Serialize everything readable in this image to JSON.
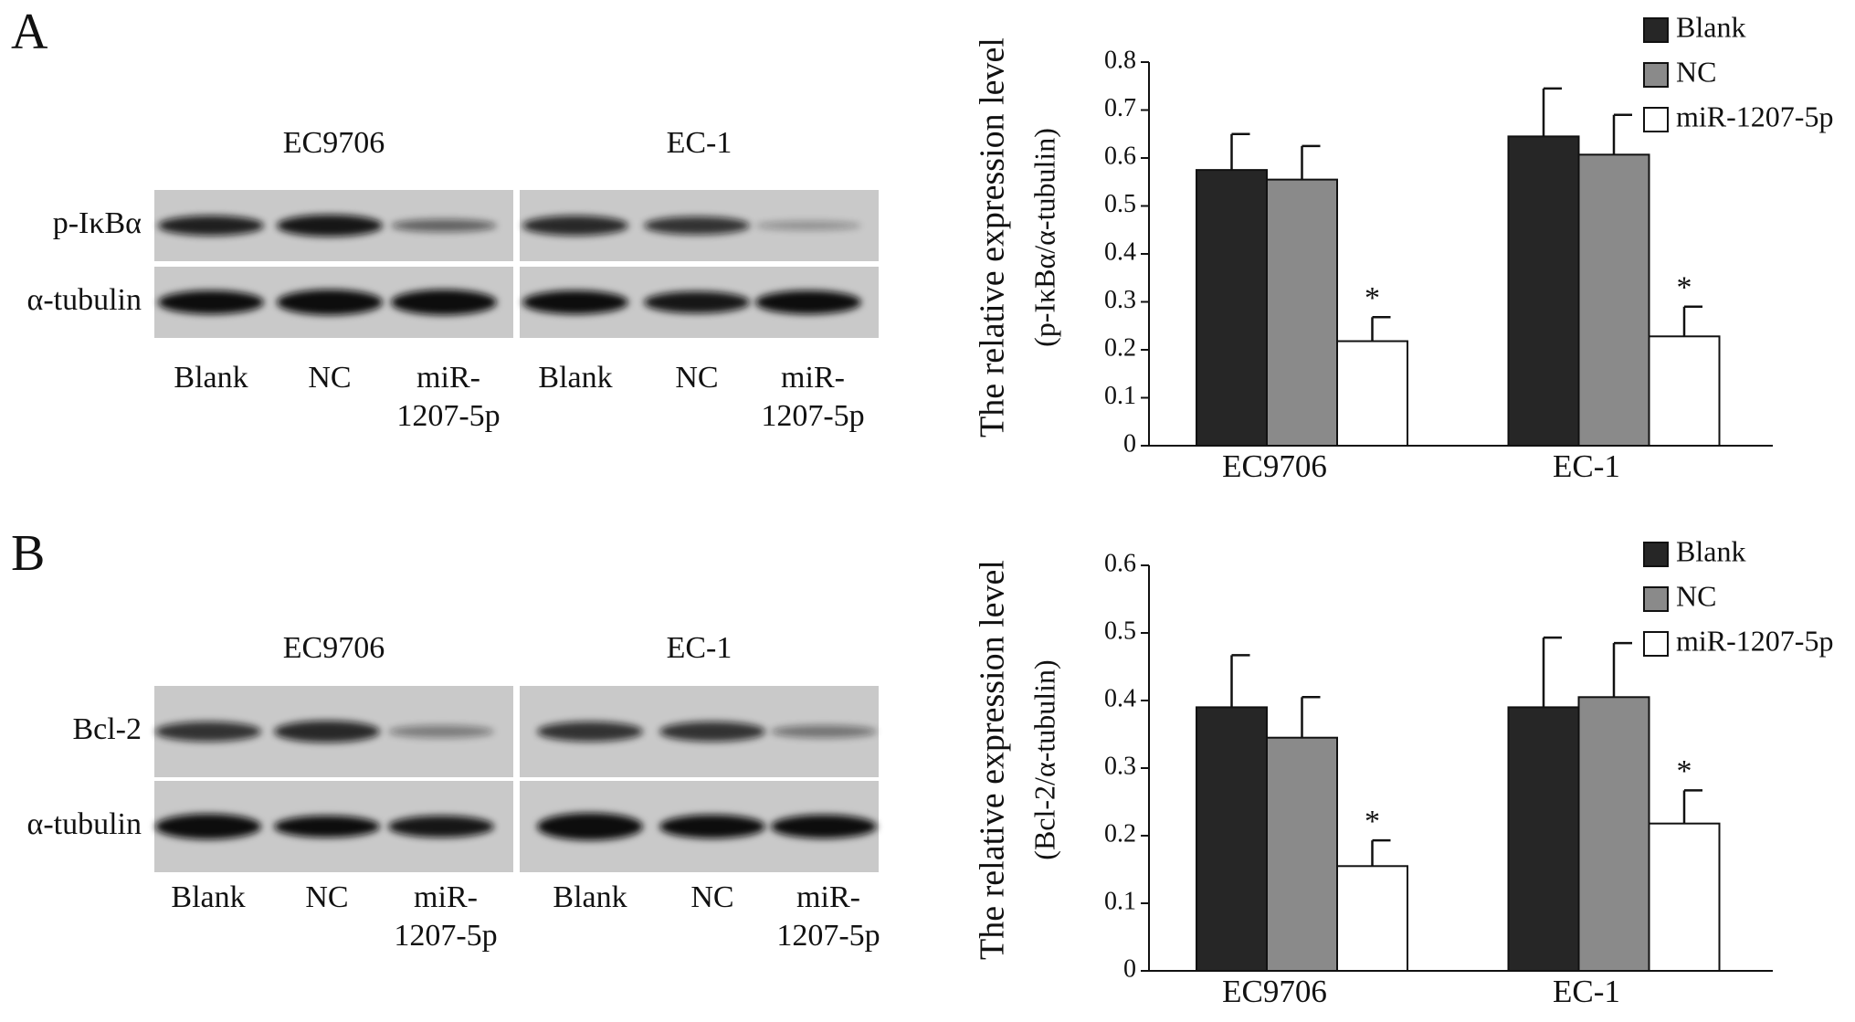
{
  "panel_labels": [
    "A",
    "B"
  ],
  "blots": [
    {
      "cell_lines": [
        "EC9706",
        "EC-1"
      ],
      "rows": [
        "p-IκBα",
        "α-tubulin"
      ],
      "lanes": [
        [
          "Blank"
        ],
        [
          "NC"
        ],
        [
          "miR-",
          "1207-5p"
        ],
        [
          "Blank"
        ],
        [
          "NC"
        ],
        [
          "miR-",
          "1207-5p"
        ]
      ]
    },
    {
      "cell_lines": [
        "EC9706",
        "EC-1"
      ],
      "rows": [
        "Bcl-2",
        "α-tubulin"
      ],
      "lanes": [
        [
          "Blank"
        ],
        [
          "NC"
        ],
        [
          "miR-",
          "1207-5p"
        ],
        [
          "Blank"
        ],
        [
          "NC"
        ],
        [
          "miR-",
          "1207-5p"
        ]
      ]
    }
  ],
  "chart_data": [
    {
      "type": "bar",
      "ylabel": "The relative expression level",
      "ylabel_sub": "(p-IκBα/α-tubulin)",
      "categories": [
        "EC9706",
        "EC-1"
      ],
      "series": [
        {
          "name": "Blank",
          "color": "#262626",
          "values": [
            0.575,
            0.645
          ],
          "errors": [
            0.075,
            0.1
          ]
        },
        {
          "name": "NC",
          "color": "#8a8a8a",
          "values": [
            0.555,
            0.607
          ],
          "errors": [
            0.07,
            0.083
          ]
        },
        {
          "name": "miR-1207-5p",
          "color": "#ffffff",
          "values": [
            0.218,
            0.228
          ],
          "errors": [
            0.05,
            0.062
          ],
          "annotations": [
            "*",
            "*"
          ]
        }
      ],
      "ylim": [
        0,
        0.8
      ],
      "yticks": [
        0,
        0.1,
        0.2,
        0.3,
        0.4,
        0.5,
        0.6,
        0.7,
        0.8
      ],
      "legend": "upper right"
    },
    {
      "type": "bar",
      "ylabel": "The relative expression level",
      "ylabel_sub": "(Bcl-2/α-tubulin)",
      "categories": [
        "EC9706",
        "EC-1"
      ],
      "series": [
        {
          "name": "Blank",
          "color": "#262626",
          "values": [
            0.39,
            0.39
          ],
          "errors": [
            0.077,
            0.103
          ]
        },
        {
          "name": "NC",
          "color": "#8a8a8a",
          "values": [
            0.345,
            0.405
          ],
          "errors": [
            0.06,
            0.08
          ]
        },
        {
          "name": "miR-1207-5p",
          "color": "#ffffff",
          "values": [
            0.155,
            0.218
          ],
          "errors": [
            0.038,
            0.049
          ],
          "annotations": [
            "*",
            "*"
          ]
        }
      ],
      "ylim": [
        0,
        0.6
      ],
      "yticks": [
        0,
        0.1,
        0.2,
        0.3,
        0.4,
        0.5,
        0.6
      ],
      "legend": "upper right"
    }
  ]
}
